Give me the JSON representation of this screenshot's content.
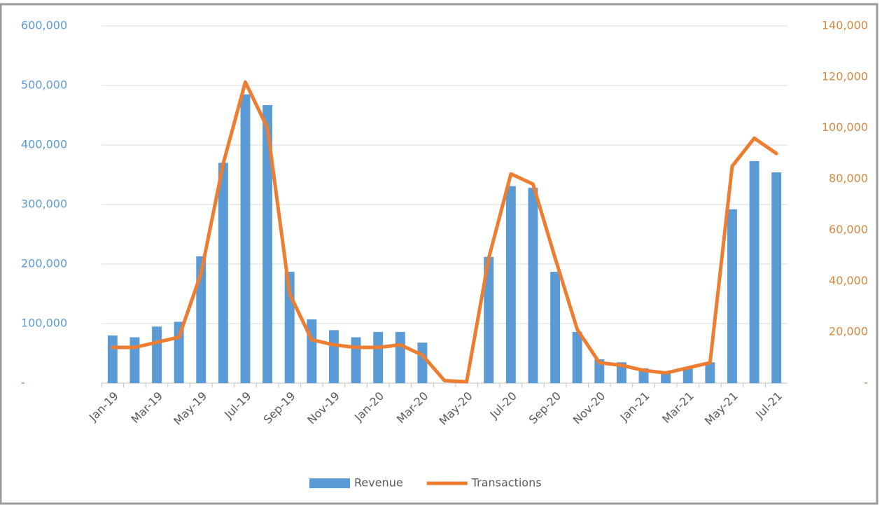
{
  "chart_data": {
    "type": "bar_line",
    "categories": [
      "Jan-19",
      null,
      "Mar-19",
      null,
      "May-19",
      null,
      "Jul-19",
      null,
      "Sep-19",
      null,
      "Nov-19",
      null,
      "Jan-20",
      null,
      "Mar-20",
      null,
      "May-20",
      null,
      "Jul-20",
      null,
      "Sep-20",
      null,
      "Nov-20",
      null,
      "Jan-21",
      null,
      "Mar-21",
      null,
      "May-21",
      null,
      "Jul-21"
    ],
    "series": [
      {
        "name": "Revenue",
        "type": "bar",
        "color": "#5b9bd5",
        "values": [
          80000,
          77000,
          95000,
          103000,
          213000,
          370000,
          485000,
          467000,
          187000,
          107000,
          89000,
          77000,
          86000,
          86000,
          68000,
          0,
          0,
          212000,
          331000,
          328000,
          187000,
          86000,
          40000,
          35000,
          25000,
          20000,
          25000,
          35000,
          292000,
          373000,
          354000
        ]
      },
      {
        "name": "Transactions",
        "type": "line",
        "axis": "y2",
        "color": "#ed7d31",
        "values": [
          14000,
          14000,
          16000,
          18000,
          43000,
          86000,
          118000,
          100000,
          35000,
          17000,
          15000,
          14000,
          14000,
          15000,
          11000,
          1000,
          500,
          49000,
          82000,
          78000,
          49000,
          21000,
          8000,
          7000,
          5000,
          4000,
          6000,
          8000,
          85000,
          96000,
          90000
        ]
      }
    ],
    "ylim": [
      0,
      600000
    ],
    "yticks": [
      {
        "value": 0,
        "label": "-"
      },
      {
        "value": 100000,
        "label": "100,000"
      },
      {
        "value": 200000,
        "label": "200,000"
      },
      {
        "value": 300000,
        "label": "300,000"
      },
      {
        "value": 400000,
        "label": "400,000"
      },
      {
        "value": 500000,
        "label": "500,000"
      },
      {
        "value": 600000,
        "label": "600,000"
      }
    ],
    "y2lim": [
      0,
      140000
    ],
    "y2ticks": [
      {
        "value": 0,
        "label": "-"
      },
      {
        "value": 20000,
        "label": "20,000"
      },
      {
        "value": 40000,
        "label": "40,000"
      },
      {
        "value": 60000,
        "label": "60,000"
      },
      {
        "value": 80000,
        "label": "80,000"
      },
      {
        "value": 100000,
        "label": "100,000"
      },
      {
        "value": 120000,
        "label": "120,000"
      },
      {
        "value": 140000,
        "label": "140,000"
      }
    ],
    "grid": true,
    "legend": "bottom",
    "ycolor": "#5b9bd5",
    "y2color": "#d6883f"
  }
}
